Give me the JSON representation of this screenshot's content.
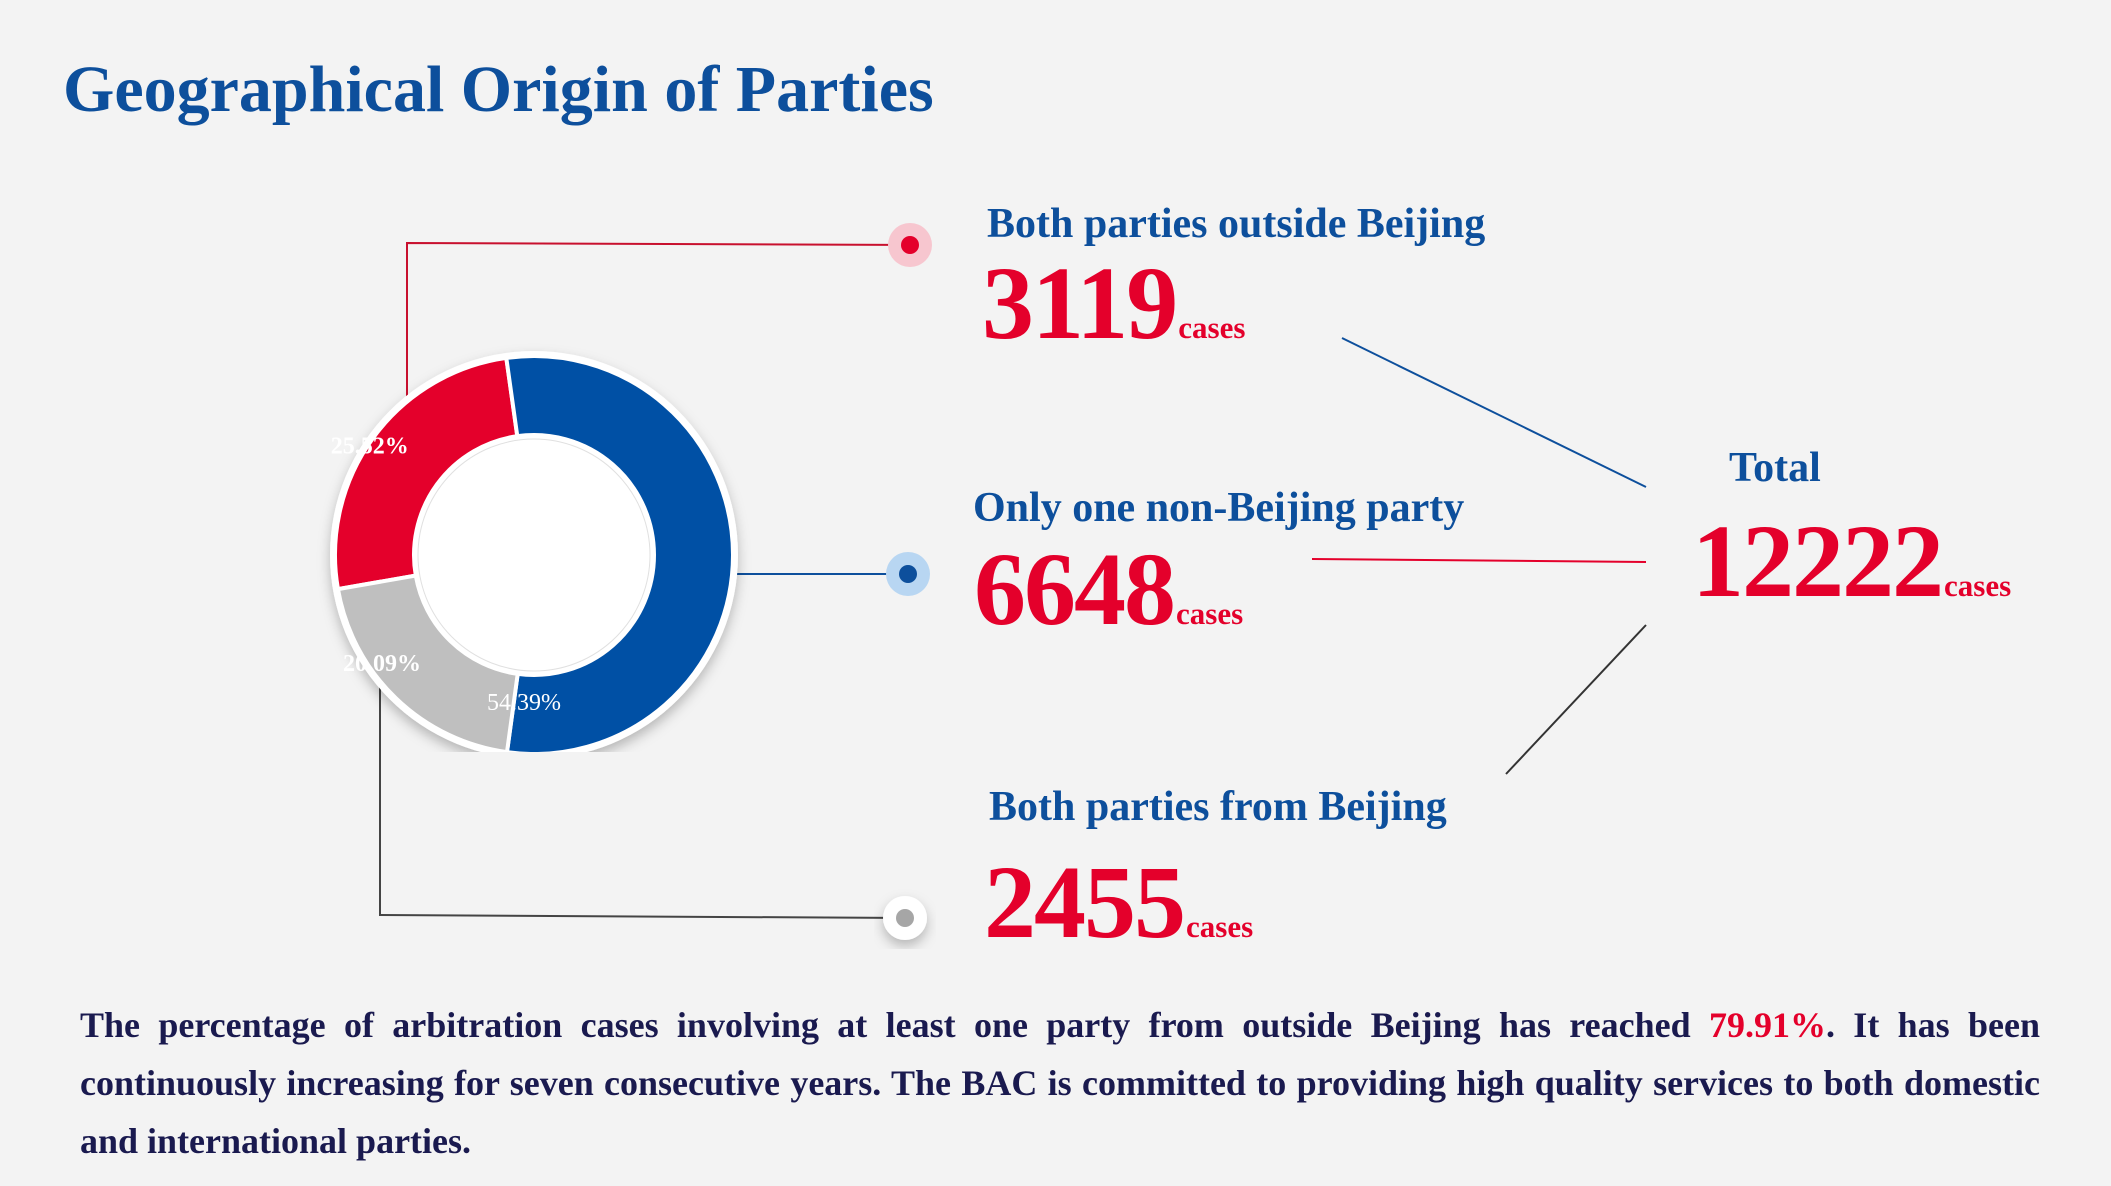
{
  "title": "Geographical Origin of Parties",
  "chart_data": {
    "type": "pie",
    "variant": "donut",
    "slices": [
      {
        "label": "Both parties outside Beijing",
        "percent": 25.52,
        "percent_label": "25.52%",
        "cases": 3119,
        "color": "#e4002b"
      },
      {
        "label": "Only one non-Beijing party",
        "percent": 54.39,
        "percent_label": "54.39%",
        "cases": 6648,
        "color": "#0050a5"
      },
      {
        "label": "Both parties from Beijing",
        "percent": 20.09,
        "percent_label": "20.09%",
        "cases": 2455,
        "color": "#bfbfbf"
      }
    ],
    "total": 12222
  },
  "labels": {
    "outside": {
      "heading": "Both parties outside Beijing",
      "value": "3119",
      "unit": "cases"
    },
    "one": {
      "heading": "Only one non-Beijing party",
      "value": "6648",
      "unit": "cases"
    },
    "beijing": {
      "heading": "Both parties from Beijing",
      "value": "2455",
      "unit": "cases"
    },
    "total": {
      "heading": "Total",
      "value": "12222",
      "unit": "cases"
    }
  },
  "summary": {
    "before": "The percentage of arbitration cases involving at least one party from outside Beijing has reached ",
    "highlight": "79.91%",
    "after": ". It has been continuously increasing for seven consecutive years. The BAC is committed to providing high quality services to both domestic and international parties."
  },
  "colors": {
    "brand_blue": "#0d4f9c",
    "accent_red": "#e4002b",
    "grey": "#bfbfbf",
    "background": "#f3f3f3"
  }
}
